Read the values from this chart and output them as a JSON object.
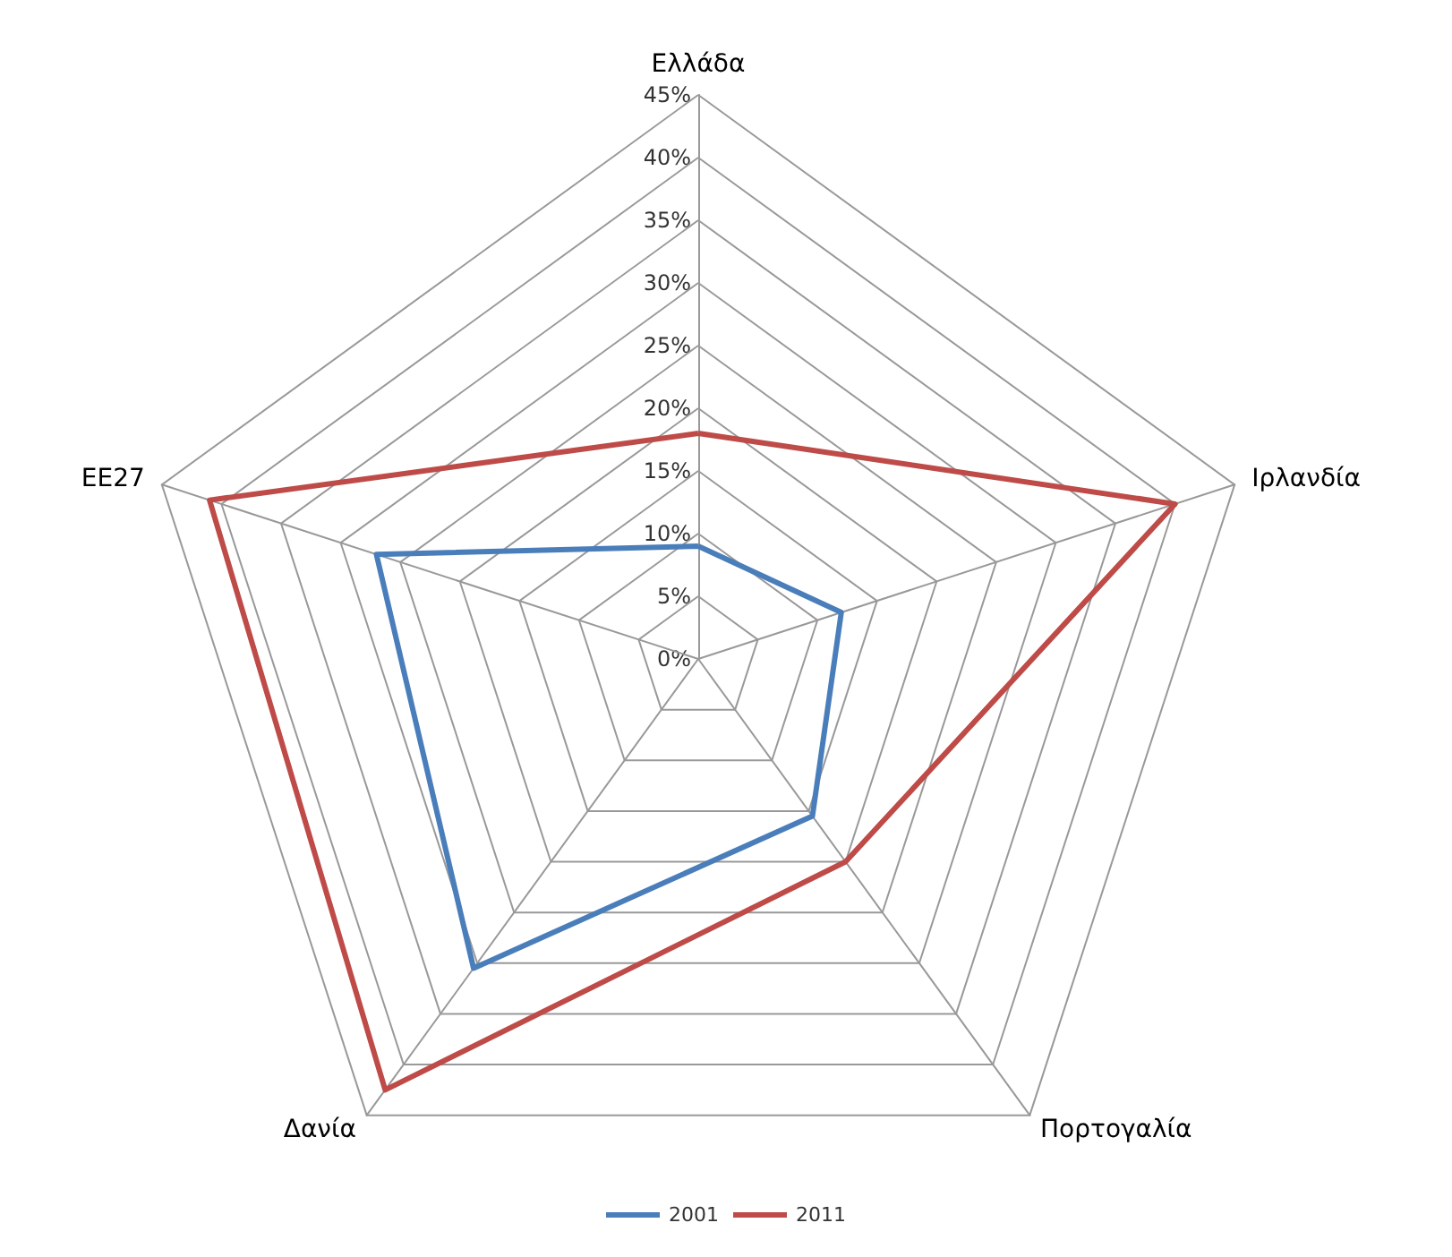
{
  "chart_data": {
    "type": "radar",
    "categories": [
      "Ελλάδα",
      "Ιρλανδία",
      "Πορτογαλία",
      "Δανία",
      "ΕΕ27"
    ],
    "series": [
      {
        "name": "2001",
        "color": "#4a7ebb",
        "values": [
          9,
          12,
          15.5,
          30.5,
          27
        ]
      },
      {
        "name": "2011",
        "color": "#be4b48",
        "values": [
          18,
          40,
          20,
          42.5,
          41
        ]
      }
    ],
    "ylim": [
      0,
      45
    ],
    "yticks": [
      {
        "value": 0,
        "label": "0%"
      },
      {
        "value": 5,
        "label": "5%"
      },
      {
        "value": 10,
        "label": "10%"
      },
      {
        "value": 15,
        "label": "15%"
      },
      {
        "value": 20,
        "label": "20%"
      },
      {
        "value": 25,
        "label": "25%"
      },
      {
        "value": 30,
        "label": "30%"
      },
      {
        "value": 35,
        "label": "35%"
      },
      {
        "value": 40,
        "label": "40%"
      },
      {
        "value": 45,
        "label": "45%"
      }
    ],
    "legend": "bottom",
    "marker": "none",
    "line_style": "solid"
  }
}
